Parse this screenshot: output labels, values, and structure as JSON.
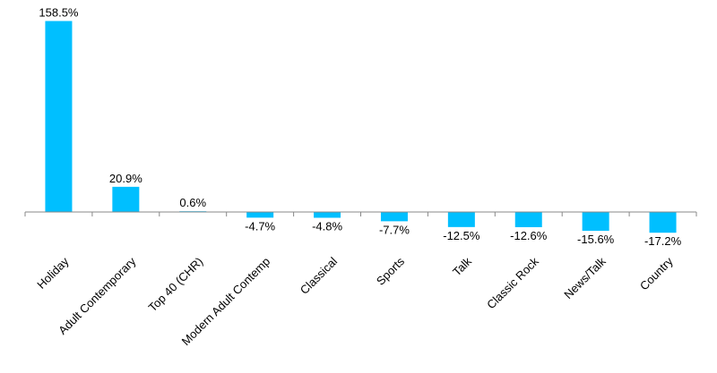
{
  "chart_data": {
    "type": "bar",
    "categories": [
      "Holiday",
      "Adult Contemporary",
      "Top 40 (CHR)",
      "Modern Adult Contemp",
      "Classical",
      "Sports",
      "Talk",
      "Classic Rock",
      "News/Talk",
      "Country"
    ],
    "values": [
      158.5,
      20.9,
      0.6,
      -4.7,
      -4.8,
      -7.7,
      -12.5,
      -12.6,
      -15.6,
      -17.2
    ],
    "data_labels": [
      "158.5%",
      "20.9%",
      "0.6%",
      "-4.7%",
      "-4.8%",
      "-7.7%",
      "-12.5%",
      "-12.6%",
      "-15.6%",
      "-17.2%"
    ],
    "unit": "%",
    "title": "",
    "xlabel": "",
    "ylabel": "",
    "ylim": [
      -20,
      160
    ],
    "grid": false,
    "legend": "none",
    "bar_color": "#00BFFF",
    "axis_color": "#888888"
  }
}
